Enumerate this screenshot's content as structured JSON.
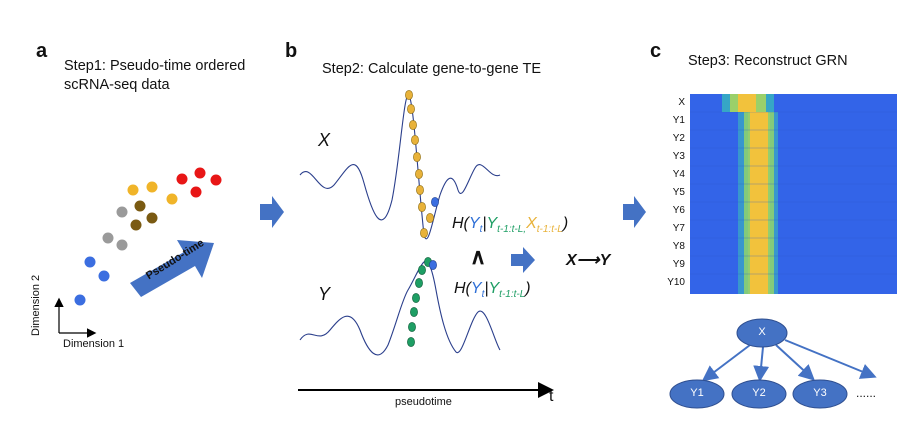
{
  "panel_a": {
    "letter": "a",
    "title_line1": "Step1: Pseudo-time ordered",
    "title_line2": "scRNA-seq data",
    "arrow_label": "Pseudo-time",
    "axis_y_label": "Dimension 2",
    "axis_x_label": "Dimension 1"
  },
  "panel_b": {
    "letter": "b",
    "title": "Step2: Calculate gene-to-gene TE",
    "x_label": "X",
    "y_label": "Y",
    "time_axis_label": "pseudotime",
    "time_axis_end": "t",
    "eq1": {
      "open": "H(",
      "yt": "Y",
      "yt_sub": "t",
      "bar": "|",
      "yhist": "Y",
      "yhist_sub": "t-1:t-L,",
      "xhist": "X",
      "xhist_sub": "t-1:t-L",
      "close": ")"
    },
    "wedge": "∧",
    "result": "X⟶Y",
    "eq2": {
      "open": "H(",
      "yt": "Y",
      "yt_sub": "t",
      "bar": "|",
      "yhist": "Y",
      "yhist_sub": "t-1:t-L",
      "close": ")"
    }
  },
  "panel_c": {
    "letter": "c",
    "title": "Step3: Reconstruct GRN",
    "heatmap_rows": [
      "X",
      "Y1",
      "Y2",
      "Y3",
      "Y4",
      "Y5",
      "Y6",
      "Y7",
      "Y8",
      "Y9",
      "Y10"
    ],
    "grn_root": "X",
    "grn_children": [
      "Y1",
      "Y2",
      "Y3"
    ],
    "ellipsis": "......"
  },
  "colors": {
    "arrow_blue": "#4472c4",
    "x_gold": "#e8b23a",
    "y_green": "#1e9e64",
    "heat_low": "#3566e8",
    "heat_high": "#f5c43a",
    "node_fill": "#4472c4",
    "eq_blue": "#2e6fd6",
    "eq_green": "#1e9e64",
    "eq_gold": "#e8b23a"
  }
}
